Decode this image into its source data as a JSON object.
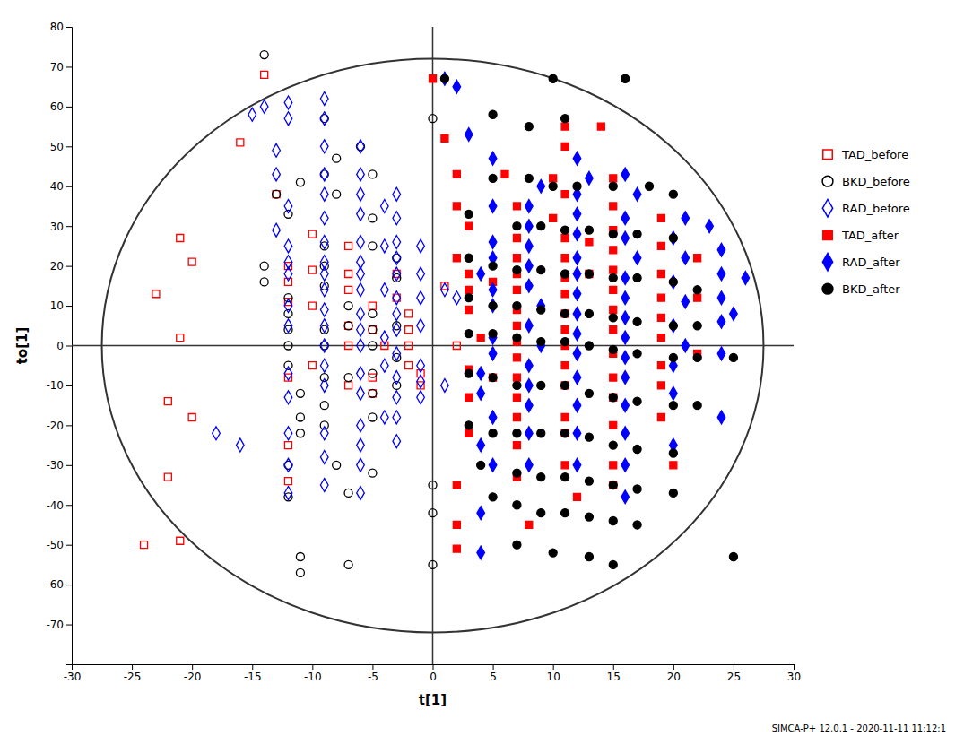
{
  "chart_data": {
    "type": "scatter",
    "xlabel": "t[1]",
    "ylabel": "to[1]",
    "xlim": [
      -30,
      30
    ],
    "ylim": [
      -80,
      80
    ],
    "xticks": [
      -30,
      -25,
      -20,
      -15,
      -10,
      -5,
      0,
      5,
      10,
      15,
      20,
      25,
      30
    ],
    "yticks": [
      -70,
      -60,
      -50,
      -40,
      -30,
      -20,
      -10,
      0,
      10,
      20,
      30,
      40,
      50,
      60,
      70,
      80
    ],
    "grid": false,
    "legend": "right",
    "footnote": "SIMCA-P+ 12.0.1 - 2020-11-11 11:12:1",
    "ellipse": {
      "cx": 0,
      "cy": 0,
      "rx": 27.5,
      "ry": 72
    },
    "reference_lines": {
      "x": [
        0
      ],
      "y": [
        0
      ]
    },
    "series": [
      {
        "name": "TAD_before",
        "color": "#FF0000",
        "marker": "open-square",
        "x": [
          -14,
          -16,
          -21,
          -20,
          -23,
          -21,
          -22,
          -20,
          -22,
          -21,
          -24,
          -13,
          -12,
          -12,
          -12,
          -12,
          -12,
          -12,
          -7,
          -7,
          -7,
          -7,
          -7,
          -7,
          -5,
          -5,
          -4,
          -5,
          -5,
          -3,
          -3,
          -2,
          -2,
          -2,
          -2,
          -10,
          -10,
          -10,
          -10,
          1,
          2,
          -1,
          -1
        ],
        "values": [
          68,
          51,
          27,
          21,
          13,
          2,
          -14,
          -18,
          -33,
          -49,
          -50,
          38,
          20,
          16,
          11,
          -8,
          -25,
          -34,
          25,
          18,
          14,
          5,
          0,
          -10,
          10,
          4,
          0,
          -8,
          -12,
          18,
          12,
          8,
          4,
          0,
          -5,
          28,
          19,
          10,
          -5,
          15,
          0,
          -10,
          -7
        ]
      },
      {
        "name": "BKD_before",
        "color": "#000000",
        "marker": "open-circle",
        "x": [
          -14,
          -9,
          -6,
          -8,
          -9,
          -11,
          -13,
          -12,
          -14,
          -14,
          -12,
          -12,
          -12,
          -12,
          -12,
          -11,
          -11,
          -11,
          -12,
          -12,
          -11,
          -11,
          -8,
          -9,
          -9,
          -9,
          -9,
          -9,
          -9,
          -9,
          -9,
          -8,
          -7,
          -7,
          -5,
          -5,
          -5,
          -5,
          -5,
          -5,
          -5,
          -5,
          -5,
          -5,
          -3,
          -3,
          -3,
          -3,
          -3,
          0,
          0,
          0,
          0,
          -7,
          -7,
          -7
        ],
        "values": [
          73,
          57,
          50,
          47,
          43,
          41,
          38,
          33,
          20,
          16,
          12,
          8,
          4,
          0,
          -5,
          -12,
          -18,
          -22,
          -30,
          -38,
          -53,
          -57,
          38,
          25,
          20,
          15,
          4,
          0,
          -8,
          -15,
          -20,
          -30,
          -37,
          -55,
          43,
          32,
          25,
          8,
          4,
          0,
          -7,
          -12,
          -18,
          -32,
          22,
          17,
          5,
          -3,
          -10,
          57,
          -35,
          -42,
          -55,
          10,
          5,
          -8
        ]
      },
      {
        "name": "RAD_before",
        "color": "#0000FF",
        "marker": "open-diamond",
        "x": [
          -14,
          -15,
          -12,
          -12,
          -13,
          -13,
          -12,
          -13,
          -12,
          -12,
          -12,
          -12,
          -12,
          -12,
          -12,
          -12,
          -12,
          -12,
          -9,
          -9,
          -9,
          -9,
          -9,
          -9,
          -9,
          -9,
          -9,
          -9,
          -9,
          -9,
          -9,
          -9,
          -9,
          -9,
          -9,
          -9,
          -6,
          -6,
          -6,
          -6,
          -6,
          -6,
          -6,
          -6,
          -6,
          -6,
          -6,
          -6,
          -6,
          -6,
          -6,
          -6,
          -6,
          -3,
          -3,
          -3,
          -3,
          -3,
          -3,
          -3,
          -3,
          -3,
          -3,
          -3,
          -3,
          -3,
          -1,
          -1,
          -1,
          -1,
          -1,
          -1,
          -1,
          1,
          2,
          1,
          -18,
          -16,
          -4,
          -4,
          -4,
          -4,
          -4,
          -4
        ],
        "values": [
          60,
          58,
          61,
          57,
          49,
          43,
          35,
          29,
          25,
          21,
          18,
          10,
          5,
          -7,
          -13,
          -22,
          -30,
          -37,
          62,
          57,
          50,
          43,
          38,
          32,
          26,
          21,
          18,
          14,
          9,
          5,
          0,
          -5,
          -10,
          -22,
          -28,
          -35,
          50,
          43,
          38,
          33,
          26,
          21,
          18,
          14,
          8,
          4,
          0,
          -7,
          -12,
          -20,
          -25,
          -30,
          -37,
          38,
          32,
          26,
          22,
          18,
          12,
          8,
          4,
          -2,
          -8,
          -13,
          -18,
          -24,
          25,
          18,
          12,
          5,
          -5,
          -9,
          -13,
          14,
          12,
          -10,
          -22,
          -25,
          35,
          25,
          14,
          2,
          -5,
          -18
        ]
      },
      {
        "name": "TAD_after",
        "color": "#FF0000",
        "marker": "square",
        "x": [
          0,
          1,
          2,
          2,
          3,
          2,
          3,
          3,
          3,
          4,
          3,
          3,
          3,
          2,
          2,
          2,
          6,
          7,
          7,
          7,
          7,
          7,
          7,
          7,
          7,
          7,
          7,
          7,
          7,
          7,
          7,
          8,
          11,
          11,
          10,
          11,
          10,
          11,
          11,
          11,
          11,
          11,
          11,
          11,
          11,
          11,
          11,
          11,
          11,
          12,
          14,
          15,
          15,
          15,
          15,
          15,
          15,
          15,
          15,
          15,
          15,
          15,
          15,
          15,
          15,
          19,
          19,
          19,
          19,
          19,
          19,
          19,
          19,
          19,
          20,
          22,
          22,
          22,
          5,
          5,
          13,
          13
        ],
        "values": [
          67,
          52,
          43,
          35,
          30,
          22,
          18,
          14,
          9,
          2,
          -6,
          -13,
          -22,
          -35,
          -45,
          -51,
          43,
          35,
          27,
          22,
          18,
          14,
          9,
          5,
          1,
          -3,
          -8,
          -13,
          -18,
          -25,
          -33,
          -45,
          55,
          50,
          42,
          38,
          32,
          27,
          22,
          17,
          13,
          8,
          4,
          0,
          -5,
          -10,
          -18,
          -22,
          -30,
          -38,
          55,
          42,
          35,
          29,
          24,
          19,
          14,
          9,
          4,
          -2,
          -8,
          -13,
          -20,
          -30,
          -35,
          32,
          25,
          18,
          12,
          7,
          2,
          -5,
          -10,
          -18,
          -30,
          22,
          12,
          -2,
          16,
          -8,
          26,
          18
        ]
      },
      {
        "name": "RAD_after",
        "color": "#0000FF",
        "marker": "diamond",
        "x": [
          1,
          2,
          3,
          5,
          5,
          5,
          5,
          4,
          5,
          5,
          5,
          5,
          4,
          4,
          5,
          4,
          5,
          4,
          4,
          9,
          8,
          8,
          8,
          8,
          8,
          9,
          8,
          9,
          8,
          8,
          8,
          8,
          8,
          12,
          13,
          12,
          12,
          12,
          12,
          12,
          12,
          12,
          12,
          12,
          12,
          12,
          12,
          12,
          16,
          17,
          16,
          16,
          17,
          16,
          16,
          16,
          16,
          16,
          16,
          16,
          16,
          16,
          16,
          21,
          20,
          21,
          20,
          21,
          20,
          21,
          20,
          20,
          20,
          23,
          24,
          24,
          24,
          24,
          24,
          24,
          26,
          25
        ],
        "values": [
          67,
          65,
          53,
          47,
          35,
          26,
          22,
          18,
          14,
          10,
          2,
          -2,
          -7,
          -12,
          -18,
          -25,
          -30,
          -42,
          -52,
          40,
          35,
          30,
          25,
          20,
          15,
          10,
          5,
          0,
          -5,
          -10,
          -15,
          -22,
          -30,
          47,
          42,
          38,
          33,
          28,
          22,
          18,
          13,
          8,
          3,
          -2,
          -8,
          -15,
          -22,
          -30,
          43,
          38,
          32,
          27,
          22,
          17,
          12,
          7,
          2,
          -3,
          -8,
          -15,
          -22,
          -30,
          -38,
          32,
          27,
          22,
          16,
          11,
          5,
          0,
          -5,
          -12,
          -25,
          30,
          24,
          18,
          12,
          6,
          -2,
          -18,
          17,
          8
        ]
      },
      {
        "name": "BKD_after",
        "color": "#000000",
        "marker": "circle",
        "x": [
          1,
          10,
          16,
          5,
          8,
          11,
          5,
          8,
          10,
          12,
          15,
          18,
          20,
          3,
          7,
          9,
          11,
          13,
          15,
          17,
          20,
          3,
          5,
          7,
          9,
          11,
          13,
          15,
          17,
          20,
          22,
          3,
          5,
          7,
          9,
          11,
          13,
          15,
          17,
          20,
          22,
          3,
          5,
          7,
          9,
          11,
          13,
          15,
          17,
          20,
          22,
          25,
          3,
          5,
          7,
          9,
          11,
          13,
          15,
          17,
          20,
          22,
          3,
          5,
          7,
          9,
          11,
          13,
          15,
          17,
          20,
          4,
          7,
          9,
          11,
          13,
          15,
          17,
          20,
          5,
          7,
          9,
          11,
          13,
          15,
          17,
          7,
          10,
          13,
          15,
          25
        ],
        "values": [
          67,
          67,
          67,
          58,
          55,
          57,
          42,
          42,
          40,
          40,
          40,
          40,
          38,
          33,
          30,
          30,
          29,
          29,
          28,
          28,
          27,
          22,
          20,
          19,
          19,
          18,
          18,
          17,
          17,
          16,
          14,
          12,
          10,
          10,
          9,
          8,
          8,
          7,
          6,
          5,
          5,
          3,
          3,
          2,
          1,
          1,
          0,
          -1,
          -2,
          -3,
          -3,
          -3,
          -7,
          -8,
          -10,
          -10,
          -10,
          -12,
          -13,
          -14,
          -15,
          -15,
          -20,
          -22,
          -22,
          -22,
          -22,
          -23,
          -25,
          -26,
          -27,
          -30,
          -32,
          -33,
          -33,
          -34,
          -35,
          -36,
          -37,
          -38,
          -40,
          -42,
          -42,
          -43,
          -44,
          -45,
          -50,
          -52,
          -53,
          -55,
          -53
        ]
      }
    ]
  }
}
